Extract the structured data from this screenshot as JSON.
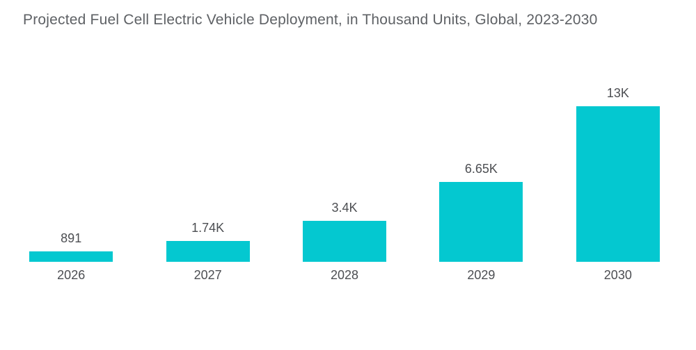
{
  "title": "Projected Fuel Cell Electric Vehicle Deployment, in Thousand Units, Global, 2023-2030",
  "chart_data": {
    "type": "bar",
    "title": "Projected Fuel Cell Electric Vehicle Deployment, in Thousand Units, Global, 2023-2030",
    "categories": [
      "2026",
      "2027",
      "2028",
      "2029",
      "2030"
    ],
    "values": [
      891,
      1740,
      3400,
      6650,
      13000
    ],
    "value_labels": [
      "891",
      "1.74K",
      "3.4K",
      "6.65K",
      "13K"
    ],
    "xlabel": "",
    "ylabel": "",
    "ylim": [
      0,
      13000
    ],
    "grid": false,
    "legend": false,
    "bar_color": "#04c8d0"
  },
  "colors": {
    "background": "#ffffff",
    "bar": "#04c8d0",
    "title_text": "#5e6165",
    "label_text": "#4c4e52"
  }
}
